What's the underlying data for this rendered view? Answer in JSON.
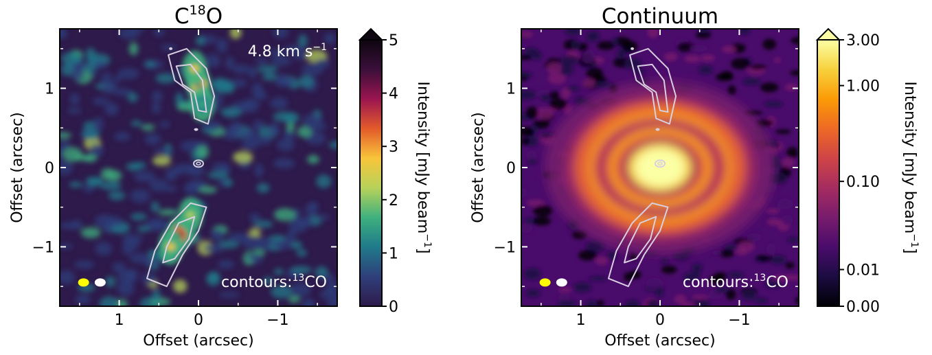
{
  "chart_data": [
    {
      "type": "heatmap",
      "title": "C",
      "title_sup": "18",
      "title_tail": "O",
      "xlabel": "Offset (arcsec)",
      "ylabel": "Offset (arcsec)",
      "xlim": [
        1.75,
        -1.75
      ],
      "ylim": [
        -1.75,
        1.75
      ],
      "xticks": [
        {
          "v": 1,
          "label": "1"
        },
        {
          "v": 0,
          "label": "0"
        },
        {
          "v": -1,
          "label": "−1"
        }
      ],
      "yticks": [
        {
          "v": 1,
          "label": "1"
        },
        {
          "v": 0,
          "label": "0"
        },
        {
          "v": -1,
          "label": "−1"
        }
      ],
      "annotation": "4.8 km s",
      "annotation_sup": "−1",
      "contour_label": "contours:",
      "contour_sup": "13",
      "contour_tail": "CO",
      "colormap": "inferno_r",
      "colorbar": {
        "label": "Intensity [mJy beam",
        "label_sup": "−1",
        "label_tail": "]",
        "scale": "linear",
        "range": [
          0,
          5
        ],
        "extend": "max",
        "ticks": [
          {
            "v": 0,
            "label": "0"
          },
          {
            "v": 1,
            "label": "1"
          },
          {
            "v": 2,
            "label": "2"
          },
          {
            "v": 3,
            "label": "3"
          },
          {
            "v": 4,
            "label": "4"
          },
          {
            "v": 5,
            "label": "5"
          }
        ],
        "colors": [
          "#2e1a4b",
          "#2f3f7a",
          "#1f7a8a",
          "#3fb07e",
          "#b7d25a",
          "#f8c53a",
          "#e35a2a",
          "#9b1550",
          "#3a0f3a",
          "#0e0610"
        ]
      },
      "beams": [
        {
          "color": "#ffff00",
          "x": 1.45,
          "y": -1.45
        },
        {
          "color": "#ffffff",
          "x": 1.24,
          "y": -1.45
        }
      ],
      "emission": [
        {
          "x": 0.0,
          "y": 1.05,
          "level": 3.8
        },
        {
          "x": 0.05,
          "y": 1.25,
          "level": 2.6
        },
        {
          "x": -0.05,
          "y": 0.8,
          "level": 1.8
        },
        {
          "x": 0.25,
          "y": -0.85,
          "level": 4.6
        },
        {
          "x": 0.35,
          "y": -1.0,
          "level": 2.5
        },
        {
          "x": 0.1,
          "y": -0.6,
          "level": 2.0
        }
      ]
    },
    {
      "type": "heatmap",
      "title": "Continuum",
      "xlabel": "Offset (arcsec)",
      "ylabel": "Offset (arcsec)",
      "xlim": [
        1.75,
        -1.75
      ],
      "ylim": [
        -1.75,
        1.75
      ],
      "xticks": [
        {
          "v": 1,
          "label": "1"
        },
        {
          "v": 0,
          "label": "0"
        },
        {
          "v": -1,
          "label": "−1"
        }
      ],
      "yticks": [
        {
          "v": 1,
          "label": "1"
        },
        {
          "v": 0,
          "label": "0"
        },
        {
          "v": -1,
          "label": "−1"
        }
      ],
      "contour_label": "contours:",
      "contour_sup": "13",
      "contour_tail": "CO",
      "colormap": "inferno",
      "colorbar": {
        "label": "Intensity [mJy beam",
        "label_sup": "−1",
        "label_tail": "]",
        "scale": "asinh",
        "range": [
          0,
          3
        ],
        "extend": "max",
        "ticks": [
          {
            "v": 0.0,
            "label": "0.00"
          },
          {
            "v": 0.01,
            "label": "0.01"
          },
          {
            "v": 0.1,
            "label": "0.10"
          },
          {
            "v": 1.0,
            "label": "1.00"
          },
          {
            "v": 3.0,
            "label": "3.00"
          }
        ],
        "colors": [
          "#000004",
          "#1b0c41",
          "#4a0c6b",
          "#781c6d",
          "#a52c60",
          "#cf4446",
          "#ed6925",
          "#fb9b06",
          "#f7d13d",
          "#fcffa4"
        ]
      },
      "beams": [
        {
          "color": "#ffff00",
          "x": 1.45,
          "y": -1.45
        },
        {
          "color": "#ffffff",
          "x": 1.24,
          "y": -1.45
        }
      ],
      "rings": [
        {
          "r_arcsec": 0.3,
          "level": 3.0
        },
        {
          "r_arcsec": 0.58,
          "level": 0.9
        },
        {
          "r_arcsec": 0.88,
          "level": 0.35
        },
        {
          "r_arcsec": 1.2,
          "level": 0.06
        }
      ]
    }
  ]
}
